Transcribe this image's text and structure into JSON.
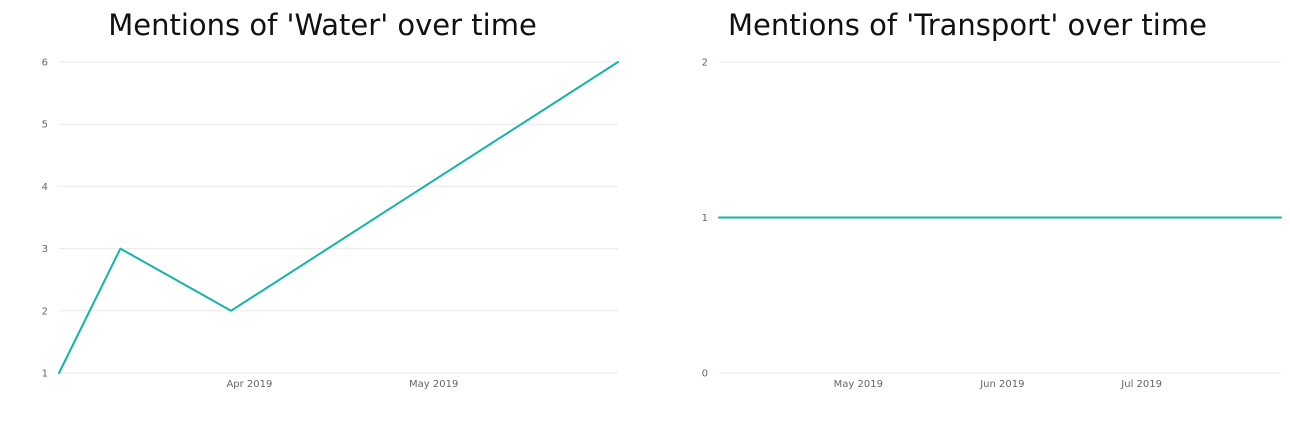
{
  "chart_data": [
    {
      "type": "line",
      "title": "Mentions of 'Water' over time",
      "xlabel": "",
      "ylabel": "",
      "color": "#13B5A5",
      "grid": true,
      "legend": "none",
      "ylim": [
        1,
        6
      ],
      "yticks": [
        1,
        2,
        3,
        4,
        5,
        6
      ],
      "xlim": [
        "2019-03-01",
        "2019-05-31"
      ],
      "xticks": [
        {
          "date": "2019-04-01",
          "label": "Apr 2019"
        },
        {
          "date": "2019-05-01",
          "label": "May 2019"
        }
      ],
      "x": [
        "2019-03-01",
        "2019-03-11",
        "2019-03-29",
        "2019-05-31"
      ],
      "y": [
        1,
        3,
        2,
        6
      ]
    },
    {
      "type": "line",
      "title": "Mentions of 'Transport' over time",
      "xlabel": "",
      "ylabel": "",
      "color": "#13B5A5",
      "grid": true,
      "legend": "none",
      "ylim": [
        0,
        2
      ],
      "yticks": [
        0,
        1,
        2
      ],
      "xlim": [
        "2019-04-01",
        "2019-07-31"
      ],
      "xticks": [
        {
          "date": "2019-05-01",
          "label": "May 2019"
        },
        {
          "date": "2019-06-01",
          "label": "Jun 2019"
        },
        {
          "date": "2019-07-01",
          "label": "Jul 2019"
        }
      ],
      "x": [
        "2019-04-01",
        "2019-07-31"
      ],
      "y": [
        1,
        1
      ]
    }
  ]
}
